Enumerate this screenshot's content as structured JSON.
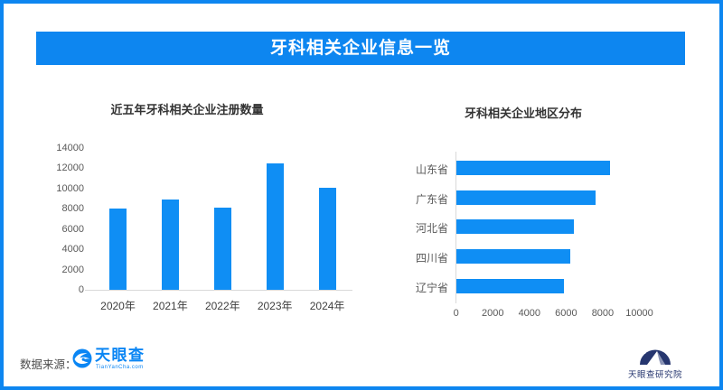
{
  "page": {
    "title": "牙科相关企业信息一览"
  },
  "colors": {
    "accent": "#0d86f0",
    "bar": "#0f8ef4",
    "axis_line": "#d9d9d9",
    "tyc_blue": "#0b86f4",
    "institute_navy": "#26366f"
  },
  "footer": {
    "source_label": "数据来源：",
    "tyc_logo_text": "天眼查",
    "tyc_logo_sub": "TianYanCha.com",
    "institute_label": "天眼查研究院"
  },
  "chart_data": [
    {
      "type": "bar",
      "title": "近五年牙科相关企业注册数量",
      "categories": [
        "2020年",
        "2021年",
        "2022年",
        "2023年",
        "2024年"
      ],
      "values": [
        8000,
        8900,
        8150,
        12500,
        10100
      ],
      "xlabel": "",
      "ylabel": "",
      "ylim": [
        0,
        14000
      ],
      "yticks": [
        0,
        2000,
        4000,
        6000,
        8000,
        10000,
        12000,
        14000
      ],
      "grid": false,
      "legend": "none",
      "bar_color": "#0f8ef4"
    },
    {
      "type": "bar-horizontal",
      "title": "牙科相关企业地区分布",
      "categories": [
        "山东省",
        "广东省",
        "河北省",
        "四川省",
        "辽宁省"
      ],
      "values": [
        8400,
        7600,
        6400,
        6200,
        5850
      ],
      "xlabel": "",
      "ylabel": "",
      "xlim": [
        0,
        11000
      ],
      "xticks": [
        0,
        2000,
        4000,
        6000,
        8000,
        10000
      ],
      "grid": false,
      "legend": "none",
      "bar_color": "#0f8ef4"
    }
  ]
}
